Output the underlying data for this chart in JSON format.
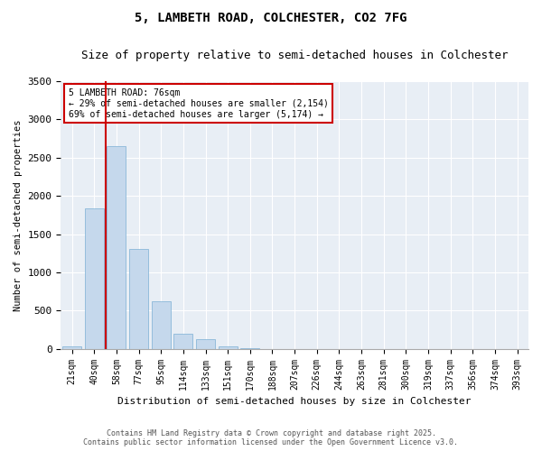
{
  "title1": "5, LAMBETH ROAD, COLCHESTER, CO2 7FG",
  "title2": "Size of property relative to semi-detached houses in Colchester",
  "xlabel": "Distribution of semi-detached houses by size in Colchester",
  "ylabel": "Number of semi-detached properties",
  "categories": [
    "21sqm",
    "40sqm",
    "58sqm",
    "77sqm",
    "95sqm",
    "114sqm",
    "133sqm",
    "151sqm",
    "170sqm",
    "188sqm",
    "207sqm",
    "226sqm",
    "244sqm",
    "263sqm",
    "281sqm",
    "300sqm",
    "319sqm",
    "337sqm",
    "356sqm",
    "374sqm",
    "393sqm"
  ],
  "values": [
    30,
    1840,
    2650,
    1310,
    625,
    195,
    130,
    30,
    10,
    2,
    0,
    0,
    0,
    0,
    0,
    0,
    0,
    0,
    0,
    0,
    0
  ],
  "bar_color": "#c5d8ec",
  "bar_edge_color": "#7bafd4",
  "vline_x": 1.5,
  "vline_color": "#cc0000",
  "annotation_text": "5 LAMBETH ROAD: 76sqm\n← 29% of semi-detached houses are smaller (2,154)\n69% of semi-detached houses are larger (5,174) →",
  "annotation_box_color": "#cc0000",
  "ylim": [
    0,
    3500
  ],
  "yticks": [
    0,
    500,
    1000,
    1500,
    2000,
    2500,
    3000,
    3500
  ],
  "footer1": "Contains HM Land Registry data © Crown copyright and database right 2025.",
  "footer2": "Contains public sector information licensed under the Open Government Licence v3.0.",
  "bg_color": "#e8eef5"
}
